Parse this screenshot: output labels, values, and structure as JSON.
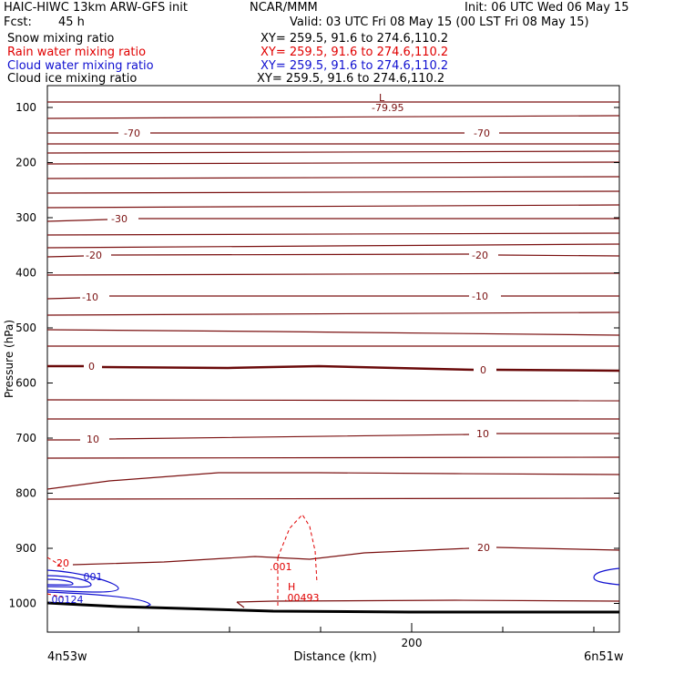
{
  "header": {
    "model": "HAIC-HIWC 13km ARW-GFS init",
    "org": "NCAR/MMM",
    "init": "Init: 06 UTC Wed 06 May 15",
    "fcst_label": "Fcst:",
    "fcst_value": "45 h",
    "valid": "Valid: 03 UTC Fri 08 May 15 (00 LST Fri 08 May 15)"
  },
  "fields": [
    {
      "name": "Snow mixing ratio",
      "xy": "XY= 259.5, 91.6 to 274.6,110.2",
      "color": "#000000"
    },
    {
      "name": "Rain water mixing ratio",
      "xy": "XY= 259.5, 91.6 to 274.6,110.2",
      "color": "#e00000"
    },
    {
      "name": "Cloud water mixing ratio",
      "xy": "XY= 259.5, 91.6 to 274.6,110.2",
      "color": "#1010d0"
    },
    {
      "name": "Cloud ice mixing ratio",
      "xy": "XY= 259.5, 91.6 to 274.6,110.2",
      "color": "#000000"
    }
  ],
  "chart_data": {
    "type": "line",
    "title": "HAIC-HIWC 13km ARW-GFS init",
    "xlabel": "Distance (km)",
    "ylabel": "Pressure (hPa)",
    "x_ticks": [
      200
    ],
    "x_ticks_minor": [
      0,
      50,
      100,
      150,
      250,
      300
    ],
    "y_ticks": [
      100,
      200,
      300,
      400,
      500,
      600,
      700,
      800,
      900,
      1000
    ],
    "xlim": [
      0,
      310
    ],
    "ylim": [
      1050,
      70
    ],
    "x_start_label": "4n53w",
    "x_end_label": "6n51w",
    "temperature_contour_labels": [
      "-70",
      "-70",
      "-30",
      "-20",
      "-20",
      "-10",
      "-10",
      "0",
      "0",
      "10",
      "10",
      "20",
      "20"
    ],
    "temperature_min": {
      "marker": "L",
      "value": "-79.95"
    },
    "rain_max": {
      "marker": "H",
      "value": ".00493"
    },
    "rain_contour_labels": [
      ".001"
    ],
    "cloud_water_contour_labels": [
      ".001",
      ".00124"
    ],
    "colors": {
      "temperature": "#7a1010",
      "rain": "#e00000",
      "cloud_water": "#1010d0",
      "terrain": "#000000"
    }
  }
}
